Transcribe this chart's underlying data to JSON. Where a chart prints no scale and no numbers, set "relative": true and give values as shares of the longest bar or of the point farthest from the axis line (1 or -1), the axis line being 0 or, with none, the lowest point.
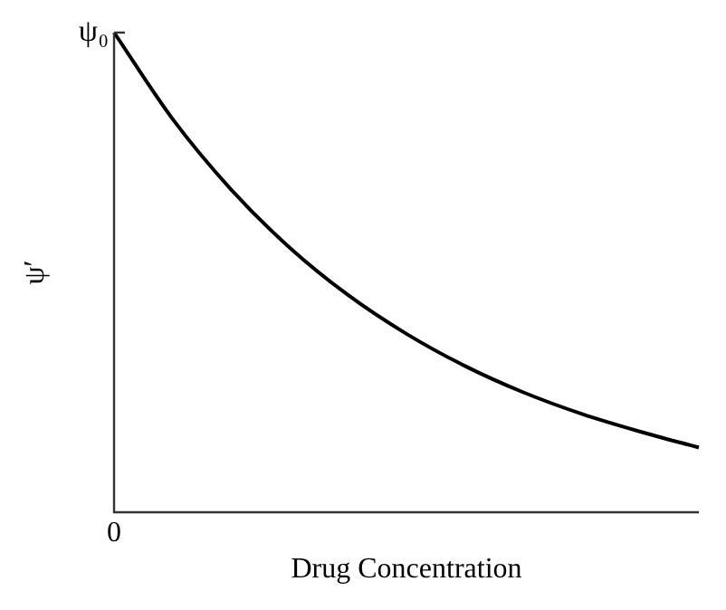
{
  "chart_data": {
    "type": "line",
    "relative": true,
    "xlabel": "Drug Concentration",
    "ylabel": "ψ′",
    "categories": [
      null,
      null,
      null,
      null,
      null,
      null,
      null,
      null,
      null,
      null,
      null
    ],
    "series": [
      {
        "color": "#000000",
        "values": [
          1,
          0.82,
          0.673,
          0.552,
          0.453,
          0.372,
          0.305,
          0.25,
          0.205,
          0.168,
          0.135
        ]
      }
    ],
    "annotations": [
      "ψ₀",
      "0"
    ],
    "grid": false,
    "legend": false,
    "marker": "none",
    "line_style": "solid"
  }
}
